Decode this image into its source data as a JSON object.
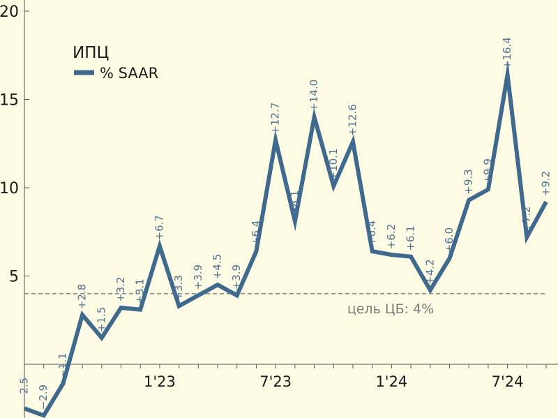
{
  "chart_data": {
    "type": "line",
    "legend": {
      "title": "ИПЦ",
      "series_label": "% SAAR",
      "position": "top-left"
    },
    "series": [
      {
        "name": "% SAAR",
        "color": "#3f6a8e",
        "values": [
          -2.5,
          -2.9,
          -1.1,
          2.8,
          1.5,
          3.2,
          3.1,
          6.7,
          3.3,
          3.9,
          4.5,
          3.9,
          6.4,
          12.7,
          8.1,
          14.0,
          10.1,
          12.6,
          6.4,
          6.2,
          6.1,
          4.2,
          6.0,
          9.3,
          9.9,
          16.4,
          7.2,
          9.2
        ],
        "labels": [
          "−2.5",
          "−2.9",
          "−1.1",
          "+2.8",
          "+1.5",
          "+3.2",
          "+3.1",
          "+6.7",
          "+3.3",
          "+3.9",
          "+4.5",
          "+3.9",
          "+6.4",
          "+12.7",
          "+8.1",
          "+14.0",
          "+10.1",
          "+12.6",
          "+6.4",
          "+6.2",
          "+6.1",
          "+4.2",
          "+6.0",
          "+9.3",
          "+9.9",
          "+16.4",
          "+7.2",
          "+9.2"
        ]
      }
    ],
    "x_ticks": [
      {
        "index": 7,
        "label": "1'23"
      },
      {
        "index": 13,
        "label": "7'23"
      },
      {
        "index": 19,
        "label": "1'24"
      },
      {
        "index": 25,
        "label": "7'24"
      }
    ],
    "y_ticks": [
      5,
      10,
      15,
      20
    ],
    "ylim": [
      -3,
      20
    ],
    "reference_line": {
      "value": 4,
      "label": "цель ЦБ: 4%",
      "color": "#7a7a7a"
    },
    "grid": false,
    "label_color": "#4f7396"
  }
}
